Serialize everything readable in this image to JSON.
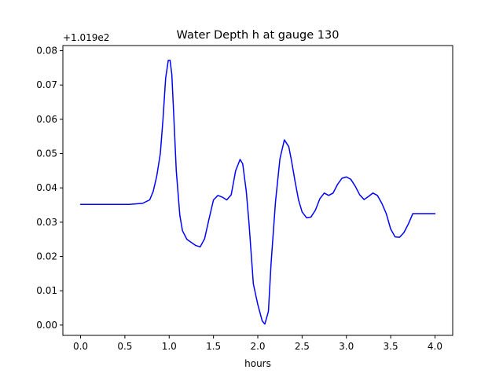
{
  "chart_data": {
    "type": "line",
    "title": "Water Depth h at gauge 130",
    "xlabel": "hours",
    "ylabel": "",
    "offset_text": "+1.019e2",
    "xlim": [
      -0.2,
      4.2
    ],
    "ylim": [
      -0.003,
      0.0815
    ],
    "xticks": [
      0.0,
      0.5,
      1.0,
      1.5,
      2.0,
      2.5,
      3.0,
      3.5,
      4.0
    ],
    "xtick_labels": [
      "0.0",
      "0.5",
      "1.0",
      "1.5",
      "2.0",
      "2.5",
      "3.0",
      "3.5",
      "4.0"
    ],
    "yticks": [
      0.0,
      0.01,
      0.02,
      0.03,
      0.04,
      0.05,
      0.06,
      0.07,
      0.08
    ],
    "ytick_labels": [
      "0.00",
      "0.01",
      "0.02",
      "0.03",
      "0.04",
      "0.05",
      "0.06",
      "0.07",
      "0.08"
    ],
    "grid": false,
    "series": [
      {
        "color": "#0000ff",
        "x": [
          0.0,
          0.2,
          0.4,
          0.55,
          0.7,
          0.78,
          0.82,
          0.86,
          0.9,
          0.93,
          0.96,
          0.99,
          1.01,
          1.03,
          1.05,
          1.08,
          1.12,
          1.15,
          1.2,
          1.3,
          1.35,
          1.4,
          1.45,
          1.5,
          1.55,
          1.6,
          1.65,
          1.7,
          1.75,
          1.8,
          1.83,
          1.87,
          1.9,
          1.95,
          2.0,
          2.05,
          2.08,
          2.12,
          2.15,
          2.2,
          2.25,
          2.3,
          2.35,
          2.38,
          2.42,
          2.46,
          2.5,
          2.55,
          2.6,
          2.65,
          2.7,
          2.75,
          2.8,
          2.85,
          2.9,
          2.95,
          3.0,
          3.05,
          3.1,
          3.15,
          3.2,
          3.25,
          3.3,
          3.35,
          3.4,
          3.45,
          3.5,
          3.55,
          3.6,
          3.65,
          3.7,
          3.75,
          3.8,
          3.85,
          3.9,
          3.95,
          4.0
        ],
        "y": [
          0.0352,
          0.0352,
          0.0352,
          0.0352,
          0.0355,
          0.0365,
          0.039,
          0.0435,
          0.05,
          0.06,
          0.072,
          0.0772,
          0.0772,
          0.073,
          0.062,
          0.045,
          0.032,
          0.0275,
          0.025,
          0.0232,
          0.0228,
          0.0252,
          0.031,
          0.0365,
          0.0378,
          0.0373,
          0.0365,
          0.038,
          0.045,
          0.0483,
          0.047,
          0.039,
          0.03,
          0.012,
          0.006,
          0.0012,
          0.0003,
          0.004,
          0.018,
          0.036,
          0.0485,
          0.054,
          0.052,
          0.048,
          0.042,
          0.0365,
          0.033,
          0.0313,
          0.0315,
          0.0335,
          0.0368,
          0.0385,
          0.0378,
          0.0385,
          0.041,
          0.0428,
          0.0432,
          0.0425,
          0.0405,
          0.038,
          0.0366,
          0.0375,
          0.0385,
          0.0378,
          0.0355,
          0.0325,
          0.028,
          0.0257,
          0.0256,
          0.027,
          0.0295,
          0.0325,
          0.0325,
          0.0325,
          0.0325,
          0.0325,
          0.0325
        ]
      }
    ]
  }
}
